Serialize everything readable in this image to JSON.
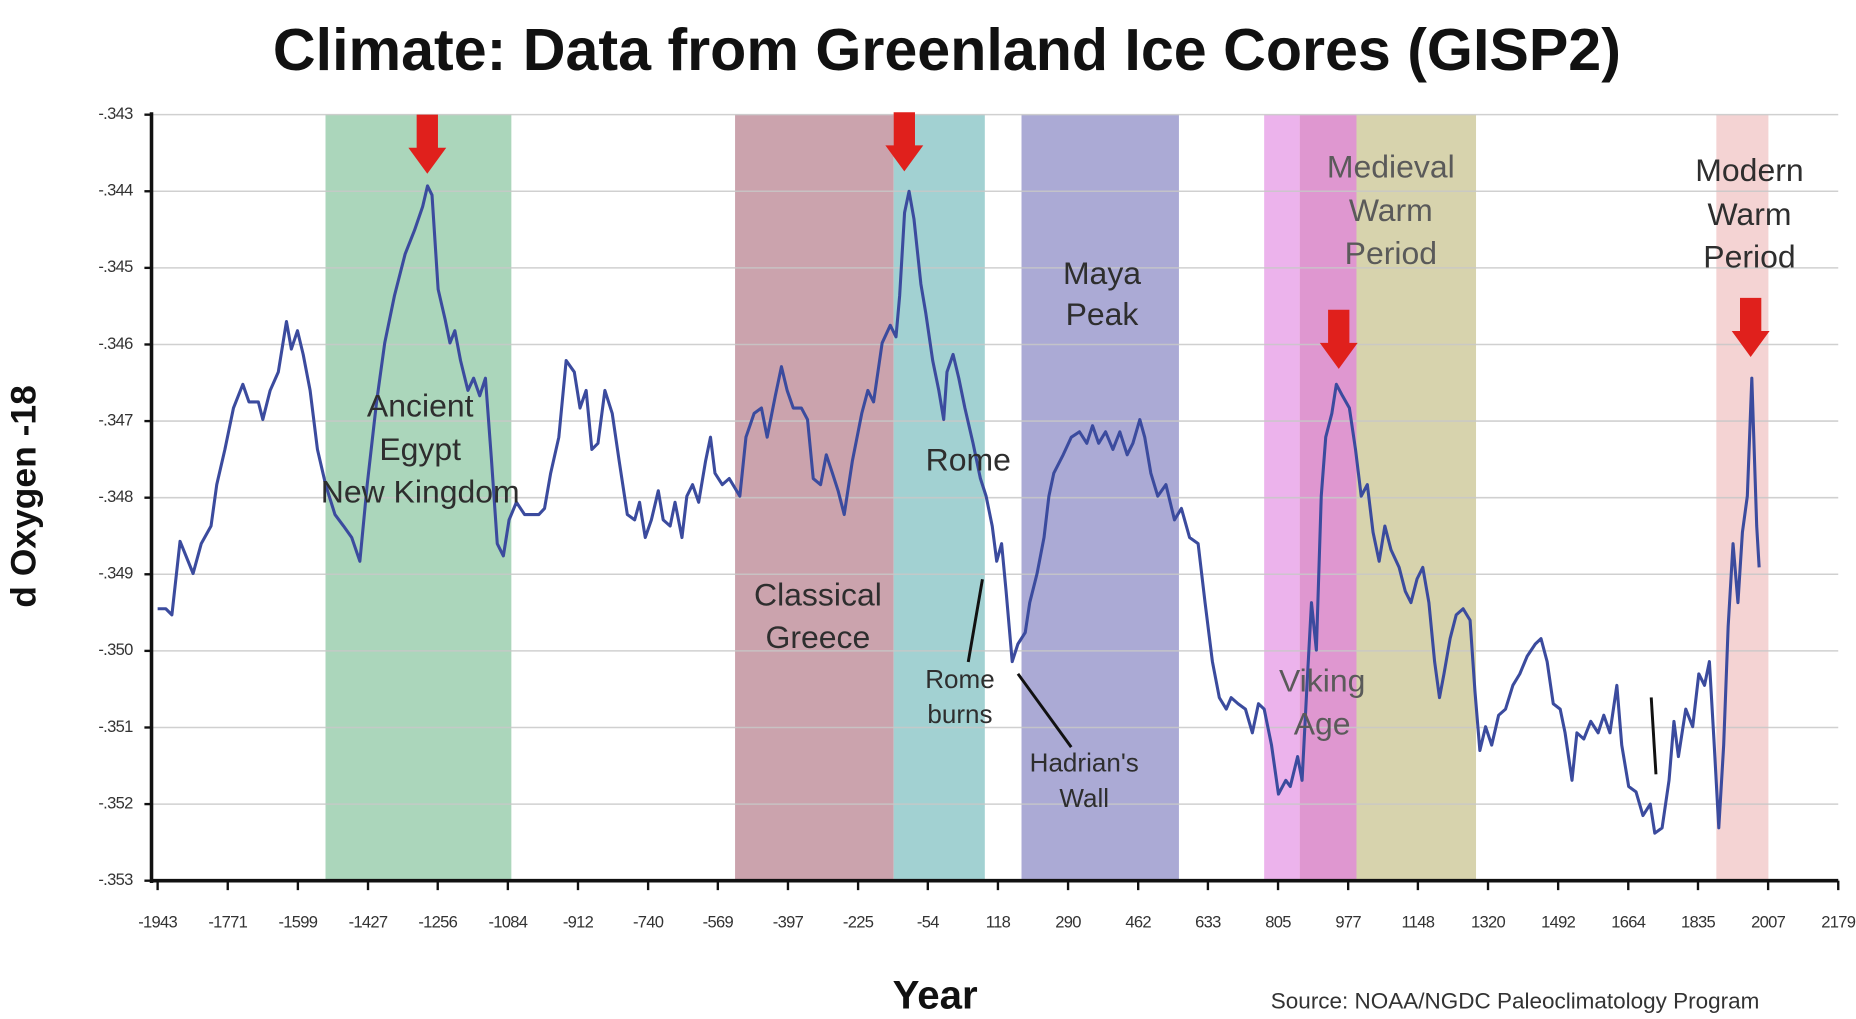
{
  "chart_data": {
    "type": "line",
    "title": "Climate: Data from Greenland Ice Cores (GISP2)",
    "xlabel": "Year",
    "ylabel": "d Oxygen -18",
    "source": "Source: NOAA/NGDC Paleoclimatology Program",
    "annotations": [
      [
        "Ancient",
        "Egypt",
        "New Kingdom"
      ],
      [
        "Classical",
        "Greece"
      ],
      [
        "Rome"
      ],
      [
        "Rome",
        "burns"
      ],
      [
        "Hadrian's",
        "Wall"
      ],
      [
        "Maya",
        "Peak"
      ],
      [
        "Viking",
        "Age"
      ],
      [
        "Medieval",
        "Warm",
        "Period"
      ],
      [
        "Modern",
        "Warm",
        "Period"
      ]
    ],
    "xlim": [
      -1958,
      2179
    ],
    "xticks": [
      -1943,
      -1771,
      -1599,
      -1427,
      -1256,
      -1084,
      -912,
      -740,
      -569,
      -397,
      -225,
      -54,
      118,
      290,
      462,
      633,
      805,
      977,
      1148,
      1320,
      1492,
      1664,
      1835,
      2007,
      2179
    ],
    "ylim": [
      -0.353,
      -0.343
    ],
    "yticks": [
      {
        "value": -0.343,
        "label": "-.343"
      },
      {
        "value": -0.344,
        "label": "-.344"
      },
      {
        "value": -0.345,
        "label": "-.345"
      },
      {
        "value": -0.346,
        "label": "-.346"
      },
      {
        "value": -0.347,
        "label": "-.347"
      },
      {
        "value": -0.348,
        "label": "-.348"
      },
      {
        "value": -0.349,
        "label": "-.349"
      },
      {
        "value": -0.35,
        "label": "-.350"
      },
      {
        "value": -0.351,
        "label": "-.351"
      },
      {
        "value": -0.352,
        "label": "-.352"
      },
      {
        "value": -0.353,
        "label": "-.353"
      }
    ],
    "grid": true,
    "x": [
      -1943,
      -1923,
      -1908,
      -1888,
      -1856,
      -1836,
      -1812,
      -1798,
      -1778,
      -1757,
      -1734,
      -1719,
      -1696,
      -1685,
      -1667,
      -1647,
      -1627,
      -1615,
      -1600,
      -1586,
      -1569,
      -1551,
      -1531,
      -1508,
      -1487,
      -1467,
      -1447,
      -1429,
      -1406,
      -1386,
      -1362,
      -1336,
      -1313,
      -1293,
      -1281,
      -1270,
      -1255,
      -1238,
      -1226,
      -1214,
      -1200,
      -1182,
      -1168,
      -1153,
      -1139,
      -1124,
      -1110,
      -1095,
      -1081,
      -1063,
      -1043,
      -1008,
      -994,
      -979,
      -959,
      -941,
      -921,
      -907,
      -892,
      -878,
      -863,
      -846,
      -828,
      -811,
      -791,
      -773,
      -761,
      -747,
      -732,
      -715,
      -703,
      -686,
      -674,
      -657,
      -645,
      -631,
      -616,
      -599,
      -587,
      -576,
      -558,
      -541,
      -515,
      -500,
      -480,
      -462,
      -448,
      -428,
      -413,
      -399,
      -384,
      -364,
      -349,
      -335,
      -317,
      -303,
      -288,
      -274,
      -259,
      -239,
      -216,
      -201,
      -187,
      -166,
      -146,
      -132,
      -123,
      -111,
      -100,
      -88,
      -71,
      -59,
      -42,
      -27,
      -15,
      -7,
      8,
      22,
      37,
      57,
      75,
      89,
      104,
      115,
      127,
      138,
      153,
      167,
      185,
      196,
      214,
      231,
      243,
      255,
      278,
      298,
      318,
      336,
      350,
      365,
      382,
      400,
      417,
      435,
      449,
      466,
      478,
      493,
      510,
      530,
      551,
      568,
      588,
      609,
      626,
      644,
      661,
      678,
      690,
      707,
      725,
      742,
      757,
      771,
      789,
      806,
      824,
      835,
      853,
      864,
      876,
      887,
      899,
      911,
      922,
      937,
      948,
      963,
      980,
      995,
      1009,
      1024,
      1038,
      1053,
      1067,
      1082,
      1102,
      1117,
      1131,
      1146,
      1160,
      1175,
      1189,
      1201,
      1212,
      1227,
      1242,
      1259,
      1276,
      1288,
      1300,
      1314,
      1329,
      1346,
      1363,
      1381,
      1398,
      1416,
      1436,
      1450,
      1465,
      1480,
      1497,
      1509,
      1526,
      1538,
      1555,
      1572,
      1590,
      1604,
      1619,
      1636,
      1648,
      1665,
      1683,
      1700,
      1718,
      1729,
      1747,
      1764,
      1776,
      1787,
      1805,
      1822,
      1837,
      1851,
      1863,
      1874,
      1886,
      1898,
      1909,
      1921,
      1933,
      1944,
      1956,
      1967,
      1979,
      1985
    ],
    "series": [
      {
        "color": "#3b4b9e",
        "values": [
          -0.34945,
          -0.34945,
          -0.34953,
          -0.34857,
          -0.34899,
          -0.3486,
          -0.34837,
          -0.34783,
          -0.34737,
          -0.34683,
          -0.34652,
          -0.34675,
          -0.34675,
          -0.34698,
          -0.3466,
          -0.34636,
          -0.3457,
          -0.34606,
          -0.34582,
          -0.34613,
          -0.3466,
          -0.34737,
          -0.34783,
          -0.34822,
          -0.34837,
          -0.34852,
          -0.34883,
          -0.34783,
          -0.34675,
          -0.34598,
          -0.34536,
          -0.34482,
          -0.34451,
          -0.3442,
          -0.34393,
          -0.34405,
          -0.34528,
          -0.34567,
          -0.34598,
          -0.34582,
          -0.34621,
          -0.3466,
          -0.34644,
          -0.34667,
          -0.34644,
          -0.34752,
          -0.3486,
          -0.34876,
          -0.34829,
          -0.34806,
          -0.34822,
          -0.34822,
          -0.34814,
          -0.34768,
          -0.34721,
          -0.34621,
          -0.34636,
          -0.34683,
          -0.3466,
          -0.34737,
          -0.34729,
          -0.3466,
          -0.3469,
          -0.34752,
          -0.34822,
          -0.34829,
          -0.34806,
          -0.34852,
          -0.34829,
          -0.34791,
          -0.34829,
          -0.34837,
          -0.34806,
          -0.34852,
          -0.34798,
          -0.34783,
          -0.34806,
          -0.34752,
          -0.34721,
          -0.34768,
          -0.34783,
          -0.34775,
          -0.34798,
          -0.34721,
          -0.3469,
          -0.34683,
          -0.34721,
          -0.34667,
          -0.34629,
          -0.3466,
          -0.34683,
          -0.34683,
          -0.34698,
          -0.34775,
          -0.34783,
          -0.34744,
          -0.34768,
          -0.34791,
          -0.34822,
          -0.34752,
          -0.3469,
          -0.3466,
          -0.34675,
          -0.34598,
          -0.34575,
          -0.3459,
          -0.34536,
          -0.34428,
          -0.344,
          -0.34436,
          -0.34521,
          -0.34559,
          -0.34621,
          -0.3466,
          -0.34698,
          -0.34636,
          -0.34613,
          -0.34644,
          -0.34683,
          -0.34729,
          -0.34775,
          -0.34798,
          -0.34837,
          -0.34883,
          -0.3486,
          -0.34922,
          -0.35014,
          -0.34991,
          -0.34976,
          -0.34937,
          -0.34899,
          -0.34852,
          -0.34798,
          -0.34768,
          -0.34744,
          -0.34721,
          -0.34714,
          -0.34729,
          -0.34706,
          -0.34729,
          -0.34714,
          -0.34737,
          -0.34714,
          -0.34744,
          -0.34729,
          -0.34698,
          -0.34721,
          -0.34768,
          -0.34798,
          -0.34783,
          -0.34829,
          -0.34814,
          -0.34852,
          -0.3486,
          -0.34937,
          -0.35014,
          -0.35061,
          -0.35076,
          -0.35061,
          -0.35069,
          -0.35076,
          -0.35107,
          -0.35069,
          -0.35076,
          -0.35123,
          -0.35187,
          -0.35169,
          -0.35177,
          -0.35138,
          -0.35169,
          -0.35045,
          -0.34937,
          -0.34999,
          -0.34798,
          -0.34721,
          -0.3469,
          -0.34652,
          -0.34667,
          -0.34683,
          -0.34737,
          -0.34798,
          -0.34783,
          -0.34845,
          -0.34883,
          -0.34837,
          -0.34868,
          -0.34891,
          -0.34922,
          -0.34937,
          -0.34906,
          -0.34891,
          -0.34937,
          -0.35014,
          -0.35061,
          -0.3503,
          -0.34984,
          -0.34953,
          -0.34945,
          -0.3496,
          -0.35053,
          -0.3513,
          -0.35099,
          -0.35123,
          -0.35084,
          -0.35076,
          -0.35045,
          -0.3503,
          -0.35007,
          -0.34991,
          -0.34984,
          -0.35014,
          -0.35069,
          -0.35076,
          -0.35107,
          -0.35169,
          -0.35107,
          -0.35115,
          -0.35092,
          -0.35107,
          -0.35084,
          -0.35107,
          -0.35045,
          -0.35123,
          -0.35177,
          -0.35184,
          -0.35215,
          -0.352,
          -0.35238,
          -0.35231,
          -0.35169,
          -0.35092,
          -0.35138,
          -0.35076,
          -0.35099,
          -0.3503,
          -0.35045,
          -0.35014,
          -0.35115,
          -0.35231,
          -0.35123,
          -0.34968,
          -0.3486,
          -0.34937,
          -0.34845,
          -0.34798,
          -0.34644,
          -0.34837,
          -0.34891
        ]
      }
    ]
  }
}
